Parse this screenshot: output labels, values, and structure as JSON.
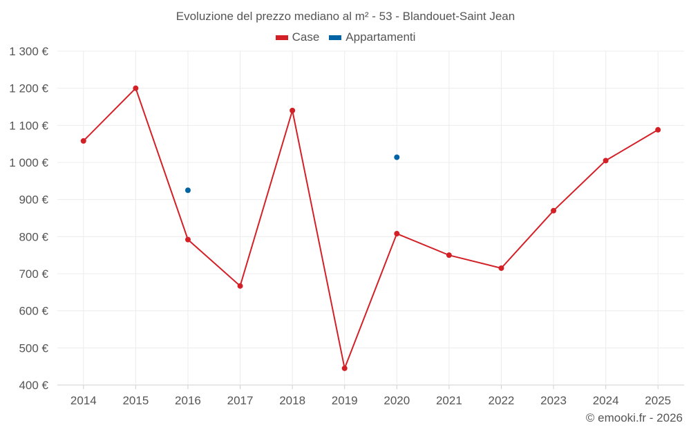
{
  "chart_data": {
    "type": "line",
    "title": "Evoluzione del prezzo mediano al m² - 53 - Blandouet-Saint Jean",
    "categories": [
      "2014",
      "2015",
      "2016",
      "2017",
      "2018",
      "2019",
      "2020",
      "2021",
      "2022",
      "2023",
      "2024",
      "2025"
    ],
    "series": [
      {
        "name": "Case",
        "color": "#d32027",
        "values": [
          1058,
          1200,
          792,
          667,
          1140,
          445,
          808,
          750,
          715,
          870,
          1005,
          1088
        ]
      },
      {
        "name": "Appartamenti",
        "color": "#0063a3",
        "values": [
          null,
          null,
          925,
          null,
          null,
          null,
          1014,
          null,
          null,
          null,
          null,
          null
        ]
      }
    ],
    "ylim": [
      400,
      1300
    ],
    "yticks": [
      400,
      500,
      600,
      700,
      800,
      900,
      1000,
      1100,
      1200,
      1300
    ],
    "ytick_labels": [
      "400 €",
      "500 €",
      "600 €",
      "700 €",
      "800 €",
      "900 €",
      "1 000 €",
      "1 100 €",
      "1 200 €",
      "1 300 €"
    ],
    "grid": true,
    "legend_position": "top-center",
    "xlabel": "",
    "ylabel": ""
  },
  "footer": "© emooki.fr - 2026"
}
